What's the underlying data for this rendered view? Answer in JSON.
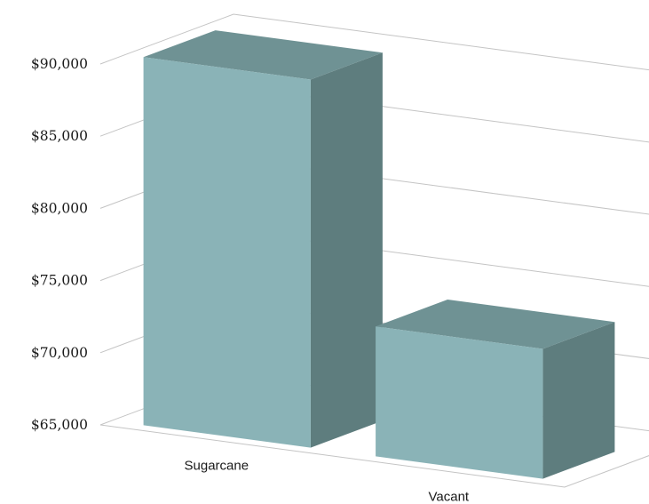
{
  "chart_data": {
    "type": "bar",
    "title": "",
    "xlabel": "",
    "ylabel": "",
    "categories": [
      "Sugarcane",
      "Vacant"
    ],
    "values": [
      90500,
      74000
    ],
    "ylim": [
      65000,
      90000
    ],
    "yticks": [
      65000,
      70000,
      75000,
      80000,
      85000,
      90000
    ],
    "ytick_labels": [
      "$65,000",
      "$70,000",
      "$75,000",
      "$80,000",
      "$85,000",
      "$90,000"
    ],
    "grid": true,
    "legend": "none",
    "three_d": true,
    "colors": {
      "bar_front": "#8ab3b7",
      "bar_top": "#6f9294",
      "bar_side": "#5e7d7e",
      "grid": "#c4c4c4"
    }
  }
}
